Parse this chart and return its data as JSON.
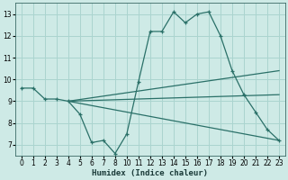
{
  "xlabel": "Humidex (Indice chaleur)",
  "bg_color": "#ceeae6",
  "grid_color": "#aad4cf",
  "line_color": "#2a7068",
  "main_line": {
    "x": [
      0,
      1,
      2,
      3,
      4,
      5,
      6,
      7,
      8,
      10,
      11,
      12,
      13,
      14,
      15,
      16,
      17,
      18,
      19,
      20,
      21,
      22,
      23
    ],
    "y": [
      9.6,
      9.6,
      9.1,
      9.1,
      9.0,
      8.4,
      7.1,
      7.2,
      6.6,
      7.5,
      9.9,
      12.2,
      12.2,
      13.1,
      12.6,
      13.0,
      13.1,
      12.0,
      10.4,
      9.3,
      8.5,
      7.7,
      7.2
    ]
  },
  "straight_lines": [
    {
      "x": [
        4,
        23
      ],
      "y": [
        9.0,
        7.2
      ]
    },
    {
      "x": [
        4,
        23
      ],
      "y": [
        9.0,
        9.3
      ]
    },
    {
      "x": [
        4,
        23
      ],
      "y": [
        9.0,
        10.4
      ]
    }
  ],
  "xtick_labels": [
    "0",
    "1",
    "2",
    "3",
    "4",
    "5",
    "6",
    "7",
    "8",
    "10",
    "11",
    "12",
    "13",
    "14",
    "15",
    "16",
    "17",
    "18",
    "19",
    "20",
    "21",
    "22",
    "23"
  ],
  "yticks": [
    7,
    8,
    9,
    10,
    11,
    12,
    13
  ],
  "xlim": [
    0,
    23
  ],
  "ylim": [
    6.5,
    13.5
  ]
}
